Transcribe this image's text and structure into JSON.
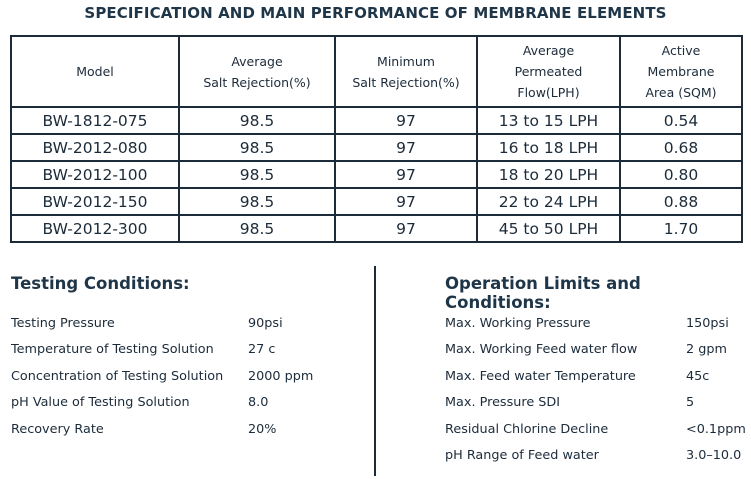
{
  "title": "SPECIFICATION AND MAIN PERFORMANCE OF MEMBRANE ELEMENTS",
  "table": {
    "headers": [
      "Model",
      "Average\nSalt Rejection(%)",
      "Minimum\nSalt Rejection(%)",
      "Average\nPermeated\nFlow(LPH)",
      "Active\nMembrane\nArea (SQM)"
    ],
    "rows": [
      [
        "BW-1812-075",
        "98.5",
        "97",
        "13 to 15 LPH",
        "0.54"
      ],
      [
        "BW-2012-080",
        "98.5",
        "97",
        "16 to 18 LPH",
        "0.68"
      ],
      [
        "BW-2012-100",
        "98.5",
        "97",
        "18 to 20 LPH",
        "0.80"
      ],
      [
        "BW-2012-150",
        "98.5",
        "97",
        "22 to 24 LPH",
        "0.88"
      ],
      [
        "BW-2012-300",
        "98.5",
        "97",
        "45 to 50 LPH",
        "1.70"
      ]
    ]
  },
  "testing": {
    "title": "Testing Conditions:",
    "items": [
      {
        "label": "Testing Pressure",
        "value": "90psi"
      },
      {
        "label": "Temperature of Testing Solution",
        "value": "27 c"
      },
      {
        "label": "Concentration of Testing Solution",
        "value": "2000 ppm"
      },
      {
        "label": "pH Value of Testing Solution",
        "value": "8.0"
      },
      {
        "label": "Recovery Rate",
        "value": "20%"
      }
    ]
  },
  "operation": {
    "title": "Operation Limits and Conditions:",
    "items": [
      {
        "label": "Max. Working Pressure",
        "value": "150psi"
      },
      {
        "label": "Max. Working Feed water flow",
        "value": "2 gpm"
      },
      {
        "label": "Max. Feed water Temperature",
        "value": "45c"
      },
      {
        "label": "Max. Pressure SDI",
        "value": "5"
      },
      {
        "label": "Residual Chlorine Decline",
        "value": "<0.1ppm"
      },
      {
        "label": "pH Range of Feed water",
        "value": "3.0–10.0"
      }
    ]
  }
}
